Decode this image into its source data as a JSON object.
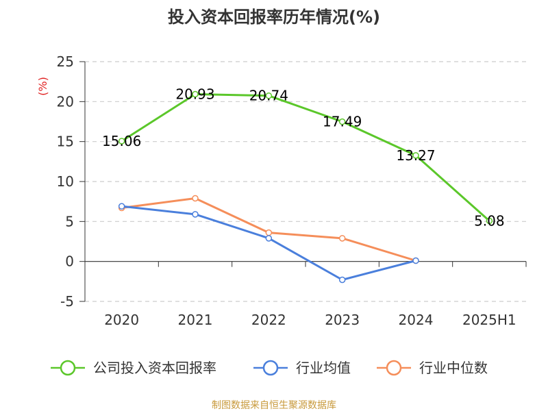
{
  "chart_data": {
    "type": "line",
    "title": "投入资本回报率历年情况(%)",
    "ylabel": "(%)",
    "xlabel": "",
    "categories": [
      "2020",
      "2021",
      "2022",
      "2023",
      "2024",
      "2025H1"
    ],
    "ylim": [
      -5,
      25
    ],
    "yticks": [
      -5,
      0,
      5,
      10,
      15,
      20,
      25
    ],
    "grid": true,
    "legend_position": "bottom",
    "series": [
      {
        "name": "公司投入资本回报率",
        "color": "#5bc72a",
        "show_labels": true,
        "values": [
          15.06,
          20.93,
          20.74,
          17.49,
          13.27,
          5.08
        ],
        "labels": [
          "15.06",
          "20.93",
          "20.74",
          "17.49",
          "13.27",
          "5.08"
        ]
      },
      {
        "name": "行业均值",
        "color": "#4a7fdc",
        "show_labels": false,
        "values": [
          6.9,
          5.9,
          2.9,
          -2.3,
          0.1,
          null
        ]
      },
      {
        "name": "行业中位数",
        "color": "#f58e5a",
        "show_labels": false,
        "values": [
          6.7,
          7.9,
          3.6,
          2.9,
          0.1,
          null
        ]
      }
    ]
  },
  "source": {
    "text": "制图数据来自恒生聚源数据库",
    "color": "#c89a3c"
  },
  "colors": {
    "unit": "#e02020",
    "grid": "#cccccc",
    "axis": "#333333"
  }
}
